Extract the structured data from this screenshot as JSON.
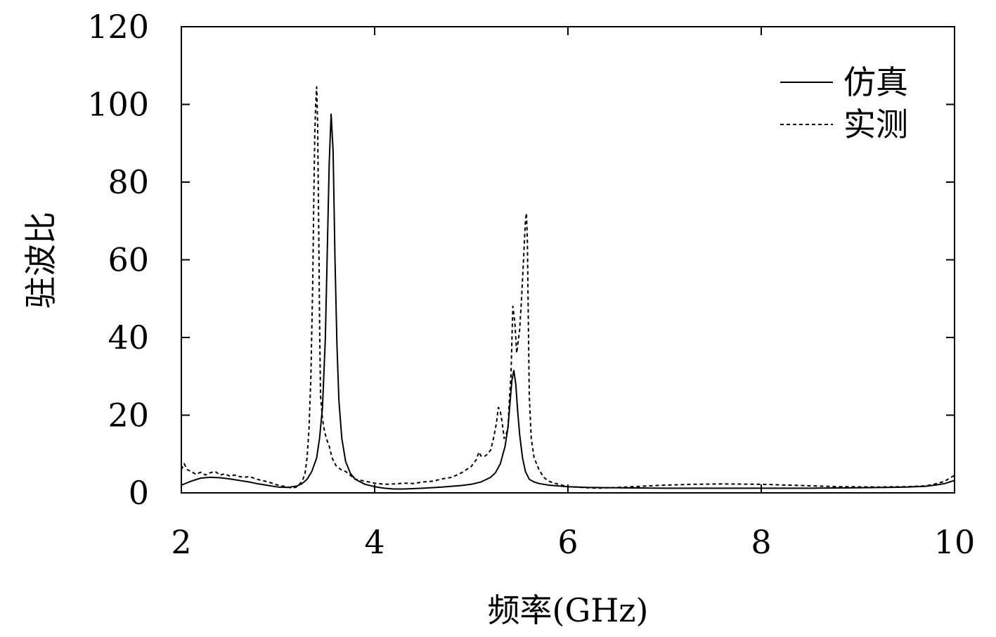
{
  "chart_data": {
    "type": "line",
    "title": "",
    "xlabel": "频率(GHz)",
    "ylabel": "驻波比",
    "xlim": [
      2,
      10
    ],
    "ylim": [
      0,
      120
    ],
    "xticks": [
      2,
      4,
      6,
      8,
      10
    ],
    "yticks": [
      0,
      20,
      40,
      60,
      80,
      100,
      120
    ],
    "grid": false,
    "legend_position": "top-right",
    "series": [
      {
        "name": "仿真",
        "style": "solid",
        "color": "#000000",
        "x": [
          2.0,
          2.1,
          2.2,
          2.3,
          2.4,
          2.5,
          2.6,
          2.7,
          2.8,
          2.9,
          3.0,
          3.1,
          3.2,
          3.25,
          3.3,
          3.35,
          3.4,
          3.43,
          3.46,
          3.49,
          3.51,
          3.53,
          3.55,
          3.57,
          3.59,
          3.61,
          3.63,
          3.66,
          3.7,
          3.75,
          3.8,
          3.9,
          4.0,
          4.1,
          4.2,
          4.3,
          4.5,
          4.7,
          4.9,
          5.0,
          5.1,
          5.2,
          5.25,
          5.3,
          5.35,
          5.38,
          5.4,
          5.42,
          5.44,
          5.46,
          5.48,
          5.5,
          5.53,
          5.56,
          5.6,
          5.65,
          5.7,
          5.8,
          5.9,
          6.0,
          6.2,
          6.5,
          7.0,
          7.5,
          8.0,
          8.5,
          9.0,
          9.3,
          9.5,
          9.7,
          9.8,
          9.9,
          10.0
        ],
        "values": [
          2.0,
          3.0,
          3.8,
          4.0,
          3.9,
          3.6,
          3.2,
          2.8,
          2.3,
          1.9,
          1.5,
          1.4,
          1.8,
          2.4,
          3.5,
          5.5,
          9.0,
          14.0,
          22.0,
          40.0,
          62.0,
          85.0,
          97.5,
          88.0,
          60.0,
          38.0,
          24.0,
          14.0,
          8.0,
          5.0,
          3.5,
          2.2,
          1.6,
          1.2,
          1.0,
          1.0,
          1.2,
          1.5,
          1.9,
          2.2,
          2.8,
          4.0,
          5.2,
          7.5,
          12.0,
          17.0,
          23.0,
          29.0,
          31.5,
          28.0,
          21.0,
          15.0,
          9.0,
          5.5,
          3.5,
          2.8,
          2.4,
          2.0,
          1.8,
          1.6,
          1.4,
          1.3,
          1.2,
          1.2,
          1.2,
          1.2,
          1.3,
          1.4,
          1.5,
          1.7,
          2.0,
          2.4,
          3.2
        ]
      },
      {
        "name": "实测",
        "style": "dashed",
        "color": "#000000",
        "x": [
          2.0,
          2.03,
          2.06,
          2.1,
          2.15,
          2.2,
          2.25,
          2.3,
          2.35,
          2.4,
          2.45,
          2.5,
          2.55,
          2.6,
          2.65,
          2.7,
          2.75,
          2.8,
          2.9,
          3.0,
          3.1,
          3.15,
          3.2,
          3.25,
          3.28,
          3.3,
          3.32,
          3.34,
          3.36,
          3.37,
          3.38,
          3.39,
          3.4,
          3.41,
          3.42,
          3.43,
          3.44,
          3.46,
          3.48,
          3.5,
          3.53,
          3.56,
          3.6,
          3.65,
          3.7,
          3.8,
          3.9,
          4.0,
          4.1,
          4.2,
          4.3,
          4.4,
          4.5,
          4.6,
          4.7,
          4.8,
          4.85,
          4.9,
          4.95,
          5.0,
          5.05,
          5.08,
          5.1,
          5.13,
          5.16,
          5.2,
          5.23,
          5.26,
          5.28,
          5.3,
          5.32,
          5.34,
          5.36,
          5.38,
          5.39,
          5.41,
          5.43,
          5.45,
          5.46,
          5.47,
          5.48,
          5.5,
          5.52,
          5.54,
          5.56,
          5.57,
          5.58,
          5.59,
          5.6,
          5.62,
          5.65,
          5.7,
          5.75,
          5.8,
          5.9,
          6.0,
          6.3,
          6.6,
          7.0,
          7.3,
          7.6,
          8.0,
          8.4,
          8.8,
          9.2,
          9.5,
          9.7,
          9.8,
          9.9,
          9.95,
          10.0
        ],
        "values": [
          6.0,
          7.5,
          6.0,
          5.5,
          4.8,
          5.3,
          4.6,
          5.2,
          5.5,
          4.6,
          4.9,
          4.3,
          4.6,
          4.2,
          4.0,
          4.2,
          3.8,
          3.4,
          2.8,
          2.0,
          1.5,
          1.2,
          1.6,
          3.0,
          5.0,
          9.0,
          16.0,
          30.0,
          55.0,
          75.0,
          92.0,
          100.0,
          104.5,
          95.0,
          70.0,
          45.0,
          25.0,
          19.0,
          16.0,
          14.0,
          12.0,
          9.0,
          7.0,
          6.0,
          5.5,
          3.5,
          3.0,
          2.5,
          2.2,
          2.3,
          2.5,
          2.4,
          2.8,
          3.0,
          3.6,
          4.0,
          4.6,
          5.2,
          6.0,
          6.8,
          8.5,
          10.5,
          9.5,
          9.3,
          9.8,
          11.0,
          14.0,
          18.0,
          22.0,
          21.0,
          18.0,
          14.0,
          15.0,
          17.0,
          22.0,
          30.0,
          48.0,
          44.0,
          40.0,
          36.0,
          38.0,
          42.0,
          50.0,
          60.0,
          70.0,
          72.0,
          65.0,
          45.0,
          25.0,
          14.0,
          9.0,
          6.0,
          4.0,
          3.0,
          2.2,
          1.6,
          1.2,
          1.5,
          2.0,
          2.2,
          2.3,
          2.2,
          1.9,
          1.6,
          1.5,
          1.6,
          1.8,
          2.3,
          3.0,
          3.8,
          4.5
        ]
      }
    ]
  }
}
